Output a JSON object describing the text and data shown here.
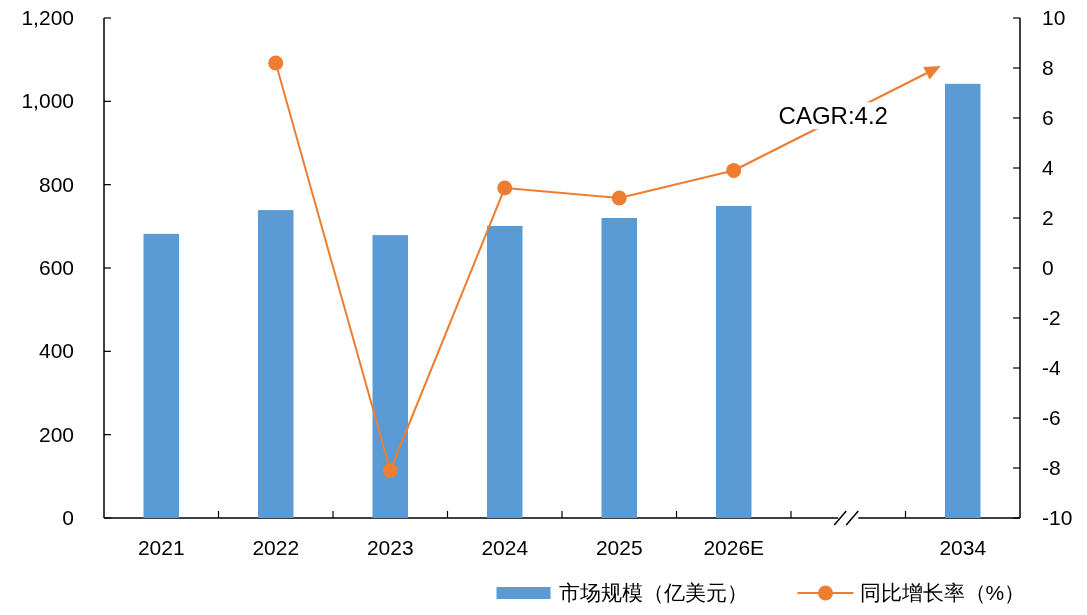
{
  "chart_data": {
    "type": "bar",
    "categories": [
      "2021",
      "2022",
      "2023",
      "2024",
      "2025",
      "2026E",
      null,
      "2034"
    ],
    "series": [
      {
        "name": "市场规模（亿美元）",
        "color": "#5b9bd5",
        "values": [
          682,
          739,
          679,
          701,
          720,
          749,
          null,
          1042
        ]
      },
      {
        "name": "同比增长率（%）",
        "type": "line",
        "axis": "y2",
        "color": "#ed7d31",
        "marker": "circle",
        "values": [
          null,
          8.2,
          -8.1,
          3.2,
          2.8,
          3.9,
          null,
          null
        ]
      }
    ],
    "ylim": [
      0,
      1200
    ],
    "yticks": [
      0,
      200,
      400,
      600,
      800,
      {
        "value": 1000,
        "label": "1,000"
      },
      {
        "value": 1200,
        "label": "1,200"
      }
    ],
    "y2lim": [
      -10,
      10
    ],
    "y2ticks": [
      -10,
      -8,
      -6,
      -4,
      -2,
      0,
      2,
      4,
      6,
      8,
      10
    ],
    "annotations": [
      "CAGR:4.2"
    ],
    "legend": "bottom"
  }
}
